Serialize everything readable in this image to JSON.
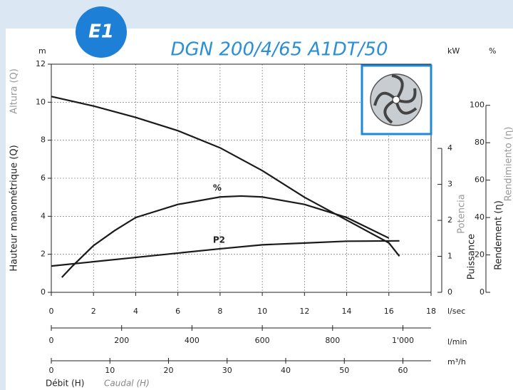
{
  "badge": "E1",
  "chart_data": {
    "type": "line",
    "title": "DGN 200/4/65 A1DT/50",
    "y_unit": "m",
    "y2_unit": "kW",
    "y3_unit": "%",
    "ylabel": "Hauteur manométrique (Q)",
    "ylabel_alt": "Altura (Q)",
    "y2label": "Puissance",
    "y2label_alt": "Potencia",
    "y3label": "Rendement (ɳ)",
    "y3label_alt": "Rendimiento (ɳ)",
    "xlabel": "Débit (H)",
    "xlabel_alt": "Caudal (H)",
    "x_unit": "l/sec",
    "x2_unit": "l/min",
    "x3_unit": "m³/h",
    "xlim": [
      0,
      18
    ],
    "xticks": [
      0,
      2,
      4,
      6,
      8,
      10,
      12,
      14,
      16,
      18
    ],
    "x2lim": [
      0,
      1080
    ],
    "x2ticks": [
      0,
      200,
      400,
      600,
      800,
      {
        "value": 1000,
        "label": "1'000"
      }
    ],
    "x3lim": [
      0,
      64.8
    ],
    "x3ticks": [
      0,
      10,
      20,
      30,
      40,
      50,
      60
    ],
    "ylim": [
      0,
      12
    ],
    "yticks": [
      0,
      2,
      4,
      6,
      8,
      10,
      12
    ],
    "y2lim": [
      0,
      6.34
    ],
    "y2ticks": [
      0,
      1,
      2,
      3,
      4
    ],
    "y3lim": [
      0,
      122
    ],
    "y3ticks": [
      0,
      20,
      40,
      60,
      80,
      100
    ],
    "grid": true,
    "series": [
      {
        "color": "#1a1a1a",
        "x": [
          0,
          2,
          4,
          6,
          8,
          10,
          12,
          14,
          16,
          16.5
        ],
        "values": [
          10.3,
          9.8,
          9.2,
          8.5,
          7.6,
          6.4,
          5.0,
          3.8,
          2.6,
          1.9
        ]
      },
      {
        "name": "%",
        "axis": "y3",
        "color": "#1a1a1a",
        "x": [
          0.5,
          1,
          2,
          3,
          4,
          6,
          8,
          9,
          10,
          12,
          14,
          16
        ],
        "values": [
          8,
          14,
          25,
          33,
          40,
          47,
          51,
          51.5,
          51,
          47,
          40,
          29
        ]
      },
      {
        "name": "P2",
        "axis": "y2",
        "color": "#1a1a1a",
        "x": [
          0,
          4,
          8,
          10,
          12,
          14,
          16.5
        ],
        "values": [
          0.73,
          0.97,
          1.21,
          1.32,
          1.37,
          1.42,
          1.43
        ]
      }
    ]
  }
}
